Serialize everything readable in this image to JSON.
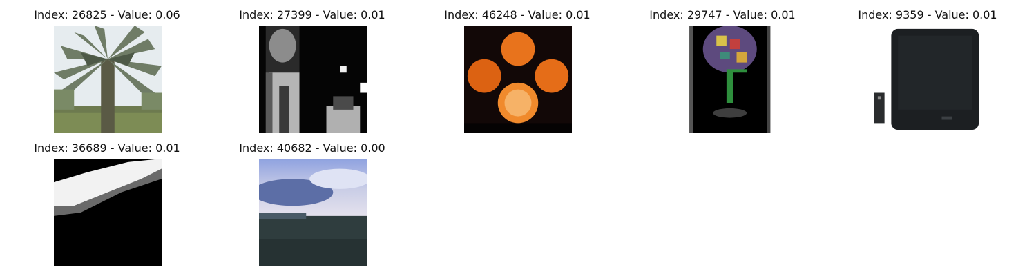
{
  "figure": {
    "panels": [
      {
        "title": "Index: 26825 - Value: 0.06",
        "index": 26825,
        "value": 0.06,
        "image": "palm-tree-photo"
      },
      {
        "title": "Index: 27399 - Value: 0.01",
        "index": 27399,
        "value": 0.01,
        "image": "grayscale-person-photo"
      },
      {
        "title": "Index: 46248 - Value: 0.01",
        "index": 46248,
        "value": 0.01,
        "image": "oranges-photo"
      },
      {
        "title": "Index: 29747 - Value: 0.01",
        "index": 29747,
        "value": 0.01,
        "image": "glass-with-flowers-photo"
      },
      {
        "title": "Index: 9359 - Value: 0.01",
        "index": 9359,
        "value": 0.01,
        "image": "television-photo"
      },
      {
        "title": "Index: 36689 - Value: 0.01",
        "index": 36689,
        "value": 0.01,
        "image": "white-streak-photo"
      },
      {
        "title": "Index: 40682 - Value: 0.00",
        "index": 40682,
        "value": 0.0,
        "image": "sky-landscape-photo"
      }
    ]
  }
}
